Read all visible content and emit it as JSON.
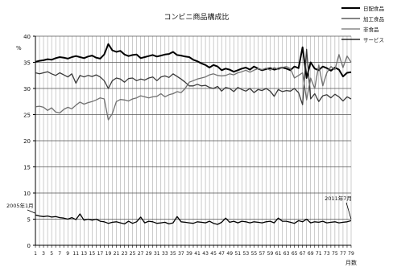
{
  "chart_data": {
    "type": "line",
    "title": "コンビニ商品構成比",
    "ylabel": "%",
    "xlabel": "月数",
    "ylim": [
      0,
      40
    ],
    "yticks": [
      0,
      5,
      10,
      15,
      20,
      25,
      30,
      35,
      40
    ],
    "x": [
      1,
      2,
      3,
      4,
      5,
      6,
      7,
      8,
      9,
      10,
      11,
      12,
      13,
      14,
      15,
      16,
      17,
      18,
      19,
      20,
      21,
      22,
      23,
      24,
      25,
      26,
      27,
      28,
      29,
      30,
      31,
      32,
      33,
      34,
      35,
      36,
      37,
      38,
      39,
      40,
      41,
      42,
      43,
      44,
      45,
      46,
      47,
      48,
      49,
      50,
      51,
      52,
      53,
      54,
      55,
      56,
      57,
      58,
      59,
      60,
      61,
      62,
      63,
      64,
      65,
      66,
      67,
      68,
      69,
      70,
      71,
      72,
      73,
      74,
      75,
      76,
      77,
      78,
      79
    ],
    "xtick_labels": [
      1,
      3,
      5,
      7,
      9,
      11,
      13,
      15,
      17,
      19,
      21,
      23,
      25,
      27,
      29,
      31,
      33,
      35,
      37,
      39,
      41,
      43,
      45,
      47,
      49,
      51,
      53,
      55,
      57,
      59,
      61,
      63,
      65,
      67,
      69,
      71,
      73,
      75,
      77,
      79
    ],
    "grid": "vertical lines at every month",
    "legend_position": "top-right",
    "series": [
      {
        "name": "日配食品",
        "values": [
          35.1,
          35.3,
          35.4,
          35.6,
          35.5,
          35.8,
          36.0,
          35.9,
          35.7,
          36.0,
          36.2,
          36.0,
          35.8,
          36.1,
          36.3,
          35.9,
          35.7,
          36.5,
          38.5,
          37.3,
          37.0,
          37.2,
          36.5,
          36.2,
          36.4,
          36.5,
          35.8,
          36.0,
          36.2,
          36.4,
          36.1,
          36.3,
          36.5,
          36.6,
          37.0,
          36.4,
          36.3,
          36.1,
          36.0,
          35.5,
          35.2,
          34.8,
          34.5,
          34.0,
          34.5,
          34.2,
          33.5,
          33.8,
          33.6,
          33.2,
          33.5,
          33.8,
          34.0,
          33.6,
          34.2,
          33.8,
          33.5,
          33.7,
          33.9,
          33.6,
          33.8,
          34.0,
          33.8,
          33.5,
          34.2,
          33.9,
          37.9,
          32.0,
          35.0,
          33.8,
          33.5,
          34.2,
          33.9,
          33.4,
          34.0,
          33.6,
          32.3,
          33.0,
          33.1
        ]
      },
      {
        "name": "加工食品",
        "values": [
          33.0,
          32.8,
          33.0,
          33.2,
          32.8,
          32.5,
          33.0,
          32.6,
          32.2,
          32.8,
          31.0,
          32.5,
          32.2,
          32.5,
          32.3,
          32.6,
          32.2,
          31.5,
          30.0,
          31.5,
          32.0,
          31.8,
          31.2,
          31.9,
          32.0,
          31.5,
          31.8,
          31.6,
          32.0,
          32.2,
          31.5,
          32.2,
          32.4,
          32.1,
          32.8,
          32.3,
          31.8,
          31.2,
          30.5,
          30.5,
          30.8,
          30.5,
          30.6,
          30.2,
          30.0,
          30.4,
          29.5,
          30.2,
          30.0,
          29.4,
          30.2,
          29.8,
          29.5,
          30.0,
          29.2,
          29.8,
          29.6,
          30.0,
          29.5,
          28.5,
          29.8,
          29.4,
          29.6,
          29.5,
          30.0,
          29.2,
          26.9,
          37.5,
          28.0,
          29.0,
          27.5,
          28.6,
          28.8,
          28.2,
          28.9,
          28.4,
          27.6,
          28.4,
          28.0
        ]
      },
      {
        "name": "非食品",
        "values": [
          26.5,
          26.6,
          26.4,
          25.8,
          26.3,
          25.5,
          25.3,
          26.0,
          26.4,
          26.1,
          26.8,
          27.4,
          27.0,
          27.3,
          27.5,
          27.8,
          28.2,
          28.0,
          24.0,
          25.2,
          27.5,
          27.9,
          27.8,
          27.6,
          28.0,
          28.2,
          28.6,
          28.4,
          28.2,
          28.4,
          28.5,
          29.0,
          28.4,
          28.8,
          29.0,
          29.4,
          29.2,
          30.0,
          31.2,
          31.5,
          31.8,
          32.0,
          32.2,
          32.6,
          32.8,
          32.5,
          32.4,
          32.5,
          32.8,
          32.6,
          33.0,
          33.2,
          33.5,
          33.1,
          33.5,
          33.8,
          33.6,
          33.9,
          33.5,
          34.0,
          33.6,
          34.0,
          34.2,
          33.8,
          32.0,
          32.5,
          33.0,
          27.8,
          32.0,
          30.0,
          34.5,
          30.5,
          33.0,
          34.2,
          33.6,
          36.5,
          34.0,
          36.2,
          35.0
        ]
      },
      {
        "name": "サービス",
        "values": [
          5.8,
          5.6,
          5.5,
          5.6,
          5.4,
          5.5,
          5.3,
          5.2,
          5.0,
          5.3,
          4.9,
          6.0,
          4.8,
          5.0,
          4.8,
          5.0,
          4.6,
          4.5,
          4.2,
          4.4,
          4.5,
          4.3,
          4.1,
          4.6,
          4.2,
          4.5,
          5.4,
          4.3,
          4.6,
          4.5,
          4.2,
          4.3,
          4.4,
          4.1,
          4.3,
          5.5,
          4.5,
          4.4,
          4.3,
          4.2,
          4.5,
          4.4,
          4.3,
          4.6,
          4.2,
          4.0,
          4.4,
          5.2,
          4.4,
          4.6,
          4.3,
          4.6,
          4.5,
          4.3,
          4.5,
          4.4,
          4.3,
          4.5,
          4.6,
          4.3,
          5.2,
          4.6,
          4.6,
          4.4,
          4.2,
          4.7,
          4.5,
          5.0,
          4.3,
          4.5,
          4.4,
          4.6,
          4.3,
          4.4,
          4.5,
          4.3,
          4.4,
          4.5,
          4.7
        ]
      }
    ],
    "annotations": [
      {
        "text": "2005年1月",
        "x": 1
      },
      {
        "text": "2011年7月",
        "x": 79
      }
    ]
  }
}
